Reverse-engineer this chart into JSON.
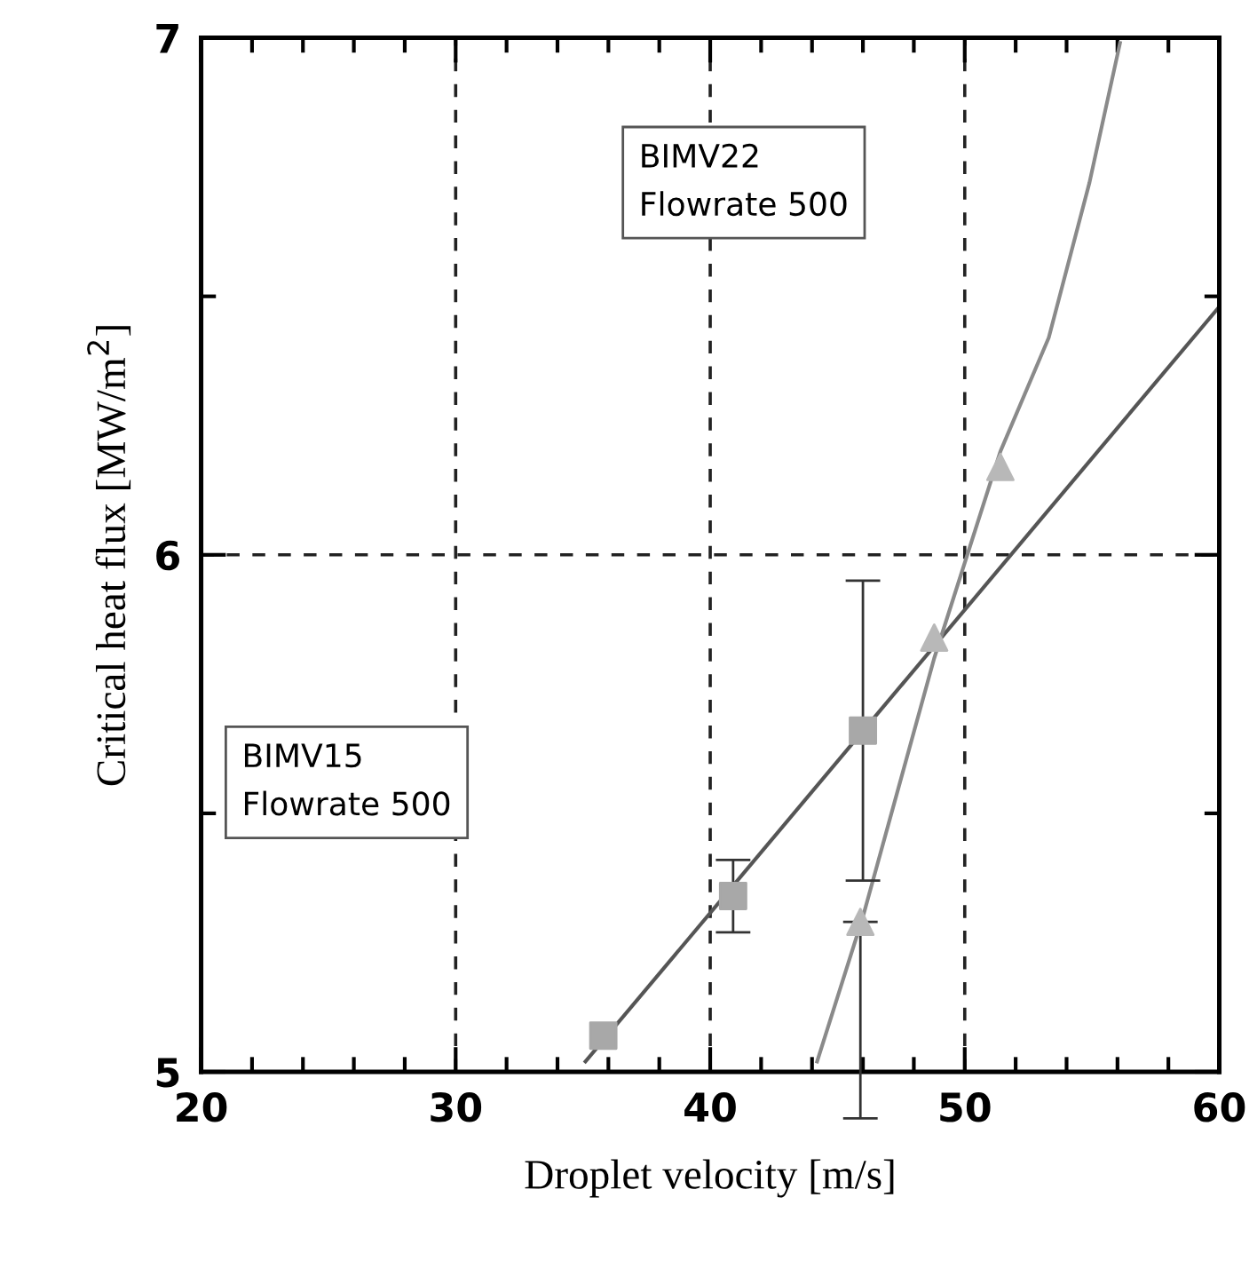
{
  "chart_data": {
    "type": "scatter",
    "xlabel": "Droplet velocity [m/s]",
    "ylabel": "Critical heat flux [MW/m$^{2}$]",
    "xlim": [
      20,
      60
    ],
    "ylim": [
      5,
      7
    ],
    "xticks": [
      20,
      {
        "value": 22,
        "label": null
      },
      {
        "value": 24,
        "label": null
      },
      {
        "value": 26,
        "label": null
      },
      {
        "value": 28,
        "label": null
      },
      30,
      {
        "value": 32,
        "label": null
      },
      {
        "value": 34,
        "label": null
      },
      {
        "value": 36,
        "label": null
      },
      {
        "value": 38,
        "label": null
      },
      40,
      {
        "value": 42,
        "label": null
      },
      {
        "value": 44,
        "label": null
      },
      {
        "value": 46,
        "label": null
      },
      {
        "value": 48,
        "label": null
      },
      50,
      {
        "value": 52,
        "label": null
      },
      {
        "value": 54,
        "label": null
      },
      {
        "value": 56,
        "label": null
      },
      {
        "value": 58,
        "label": null
      },
      60
    ],
    "yticks": [
      5,
      {
        "value": 5.5,
        "label": null
      },
      6,
      {
        "value": 6.5,
        "label": null
      },
      7
    ],
    "grid": true,
    "series": [
      {
        "marker": "square",
        "color": "#a8a8a8",
        "x": [
          35.8,
          40.9,
          46.0
        ],
        "values": [
          5.07,
          5.34,
          5.66
        ],
        "errors": [
          null,
          [
            5.27,
            5.41
          ],
          [
            5.37,
            5.95
          ]
        ]
      },
      {
        "marker": "triangle",
        "color": "#b8b8b8",
        "x": [
          45.9,
          48.8,
          51.4
        ],
        "values": [
          5.29,
          5.84,
          6.17
        ],
        "errors": [
          [
            4.91,
            5.29
          ],
          null,
          null
        ]
      },
      {
        "type": "line",
        "marker": "none",
        "color": "#555555",
        "x": [
          35.1,
          60
        ],
        "values": [
          5.02,
          6.48
        ]
      },
      {
        "type": "line",
        "marker": "none",
        "color": "#8a8a8a",
        "x": [
          44.2,
          46.0,
          48.8,
          51.4,
          53.3,
          54.9,
          56.1
        ],
        "values": [
          5.02,
          5.3,
          5.8,
          6.2,
          6.42,
          6.72,
          6.99
        ]
      }
    ],
    "annotations": [
      "BIMV22\nFlowrate 500",
      "BIMV15\nFlowrate 500"
    ]
  }
}
